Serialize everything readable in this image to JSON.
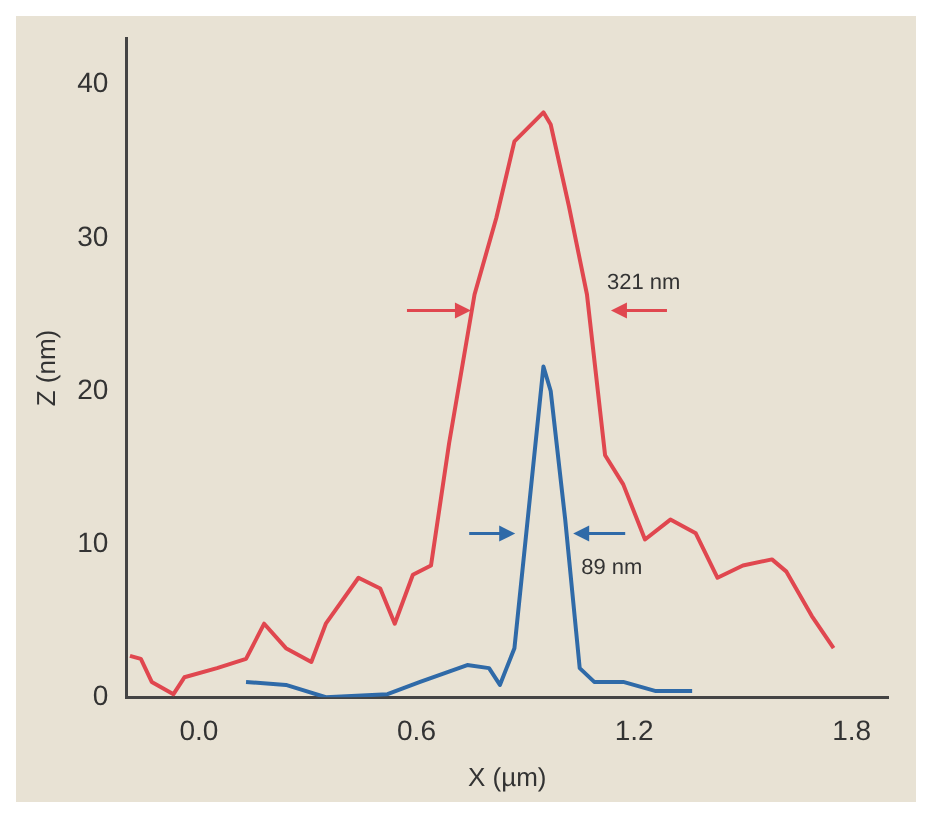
{
  "chart_data": {
    "type": "line",
    "xlabel": "X (µm)",
    "ylabel": "Z (nm)",
    "xlim": [
      -0.2,
      1.9
    ],
    "ylim": [
      0,
      43
    ],
    "xticks": [
      {
        "value": 0,
        "label": "0.0"
      },
      0.6,
      1.2,
      1.8
    ],
    "yticks": [
      0,
      10,
      20,
      30,
      40
    ],
    "grid": false,
    "legend": false,
    "marker": "none",
    "line_style": "solid",
    "series": [
      {
        "color": "#e0474f",
        "x": [
          -0.19,
          -0.16,
          -0.13,
          -0.07,
          -0.04,
          0.05,
          0.13,
          0.18,
          0.24,
          0.31,
          0.35,
          0.44,
          0.5,
          0.54,
          0.59,
          0.64,
          0.69,
          0.76,
          0.82,
          0.87,
          0.95,
          0.97,
          1.02,
          1.07,
          1.12,
          1.17,
          1.23,
          1.3,
          1.37,
          1.43,
          1.5,
          1.58,
          1.62,
          1.69,
          1.75
        ],
        "values": [
          2.7,
          2.5,
          1,
          0.2,
          1.3,
          1.9,
          2.5,
          4.8,
          3.2,
          2.3,
          4.8,
          7.8,
          7.1,
          4.8,
          8,
          8.6,
          16.6,
          26.3,
          31.3,
          36.3,
          38.2,
          37.4,
          32.1,
          26.3,
          15.8,
          13.9,
          10.3,
          11.6,
          10.7,
          7.8,
          8.6,
          9,
          8.2,
          5.3,
          3.2
        ]
      },
      {
        "color": "#2f6aa8",
        "x": [
          0.13,
          0.24,
          0.35,
          0.52,
          0.61,
          0.74,
          0.8,
          0.83,
          0.87,
          0.91,
          0.95,
          0.97,
          1.01,
          1.05,
          1.09,
          1.17,
          1.26,
          1.36
        ],
        "values": [
          1,
          0.8,
          0,
          0.2,
          1,
          2.1,
          1.9,
          0.8,
          3.2,
          12.4,
          21.6,
          20,
          11.6,
          1.9,
          1,
          1,
          0.4,
          0.4
        ]
      }
    ],
    "annotations": [
      {
        "text": "321 nm",
        "x": 1.07,
        "y": 26.3
      },
      {
        "text": "89 nm",
        "x": 1.01,
        "y": 11.6
      }
    ]
  }
}
